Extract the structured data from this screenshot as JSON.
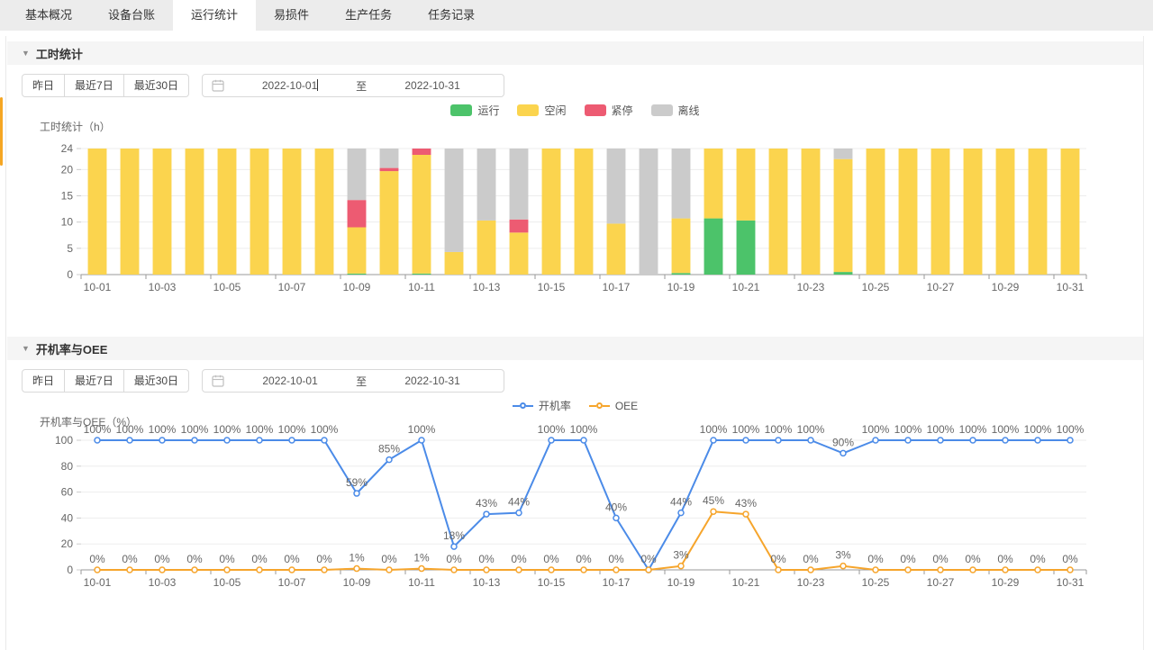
{
  "tabs": [
    {
      "label": "基本概况",
      "active": false
    },
    {
      "label": "设备台账",
      "active": false
    },
    {
      "label": "运行统计",
      "active": true
    },
    {
      "label": "易损件",
      "active": false
    },
    {
      "label": "生产任务",
      "active": false
    },
    {
      "label": "任务记录",
      "active": false
    }
  ],
  "sections": [
    {
      "title": "工时统计",
      "filters": {
        "yesterday": "昨日",
        "last7": "最近7日",
        "last30": "最近30日",
        "start": "2022-10-01",
        "to": "至",
        "end": "2022-10-31"
      },
      "legend": [
        {
          "label": "运行",
          "color": "#4cc36a"
        },
        {
          "label": "空闲",
          "color": "#fbd44e"
        },
        {
          "label": "紧停",
          "color": "#ed5b72"
        },
        {
          "label": "离线",
          "color": "#cbcbcb"
        }
      ]
    },
    {
      "title": "开机率与OEE",
      "filters": {
        "yesterday": "昨日",
        "last7": "最近7日",
        "last30": "最近30日",
        "start": "2022-10-01",
        "to": "至",
        "end": "2022-10-31"
      },
      "legend": [
        {
          "label": "开机率",
          "color": "#4b8be8"
        },
        {
          "label": "OEE",
          "color": "#f6a52c"
        }
      ]
    }
  ],
  "chart_data": [
    {
      "type": "bar",
      "stacked": true,
      "title": "工时统计（h）",
      "categories": [
        "10-01",
        "10-02",
        "10-03",
        "10-04",
        "10-05",
        "10-06",
        "10-07",
        "10-08",
        "10-09",
        "10-10",
        "10-11",
        "10-12",
        "10-13",
        "10-14",
        "10-15",
        "10-16",
        "10-17",
        "10-18",
        "10-19",
        "10-20",
        "10-21",
        "10-22",
        "10-23",
        "10-24",
        "10-25",
        "10-26",
        "10-27",
        "10-28",
        "10-29",
        "10-30",
        "10-31"
      ],
      "x_label_every": 2,
      "ylim": [
        0,
        24
      ],
      "yticks": [
        0,
        5,
        10,
        15,
        20,
        24
      ],
      "legend_position": "top-center",
      "grid": true,
      "series": [
        {
          "name": "运行",
          "color": "#4cc36a",
          "values": [
            0,
            0,
            0,
            0,
            0,
            0,
            0,
            0,
            0.2,
            0,
            0.2,
            0,
            0,
            0,
            0,
            0,
            0,
            0,
            0.3,
            10.7,
            10.3,
            0,
            0,
            0.5,
            0,
            0,
            0,
            0,
            0,
            0,
            0
          ]
        },
        {
          "name": "空闲",
          "color": "#fbd44e",
          "values": [
            24,
            24,
            24,
            24,
            24,
            24,
            24,
            24,
            8.8,
            19.7,
            22.6,
            4.3,
            10.3,
            8,
            24,
            24,
            9.7,
            0,
            10.4,
            13.3,
            13.7,
            24,
            24,
            21.5,
            24,
            24,
            24,
            24,
            24,
            24,
            24
          ]
        },
        {
          "name": "紧停",
          "color": "#ed5b72",
          "values": [
            0,
            0,
            0,
            0,
            0,
            0,
            0,
            0,
            5.2,
            0.6,
            1.2,
            0,
            0,
            2.5,
            0,
            0,
            0,
            0,
            0,
            0,
            0,
            0,
            0,
            0,
            0,
            0,
            0,
            0,
            0,
            0,
            0
          ]
        },
        {
          "name": "离线",
          "color": "#cbcbcb",
          "values": [
            0,
            0,
            0,
            0,
            0,
            0,
            0,
            0,
            9.8,
            3.7,
            0,
            19.7,
            13.7,
            13.5,
            0,
            0,
            14.3,
            24,
            13.3,
            0,
            0,
            0,
            0,
            2,
            0,
            0,
            0,
            0,
            0,
            0,
            0
          ]
        }
      ]
    },
    {
      "type": "line",
      "title": "开机率与OEE（%）",
      "categories": [
        "10-01",
        "10-02",
        "10-03",
        "10-04",
        "10-05",
        "10-06",
        "10-07",
        "10-08",
        "10-09",
        "10-10",
        "10-11",
        "10-12",
        "10-13",
        "10-14",
        "10-15",
        "10-16",
        "10-17",
        "10-18",
        "10-19",
        "10-20",
        "10-21",
        "10-22",
        "10-23",
        "10-24",
        "10-25",
        "10-26",
        "10-27",
        "10-28",
        "10-29",
        "10-30",
        "10-31"
      ],
      "x_label_every": 2,
      "ylim": [
        0,
        100
      ],
      "yticks": [
        0,
        20,
        40,
        60,
        80,
        100
      ],
      "unit": "%",
      "legend_position": "top-center",
      "grid": true,
      "series": [
        {
          "name": "开机率",
          "color": "#4b8be8",
          "skip_zero_label": true,
          "values": [
            100,
            100,
            100,
            100,
            100,
            100,
            100,
            100,
            59,
            85,
            100,
            18,
            43,
            44,
            100,
            100,
            40,
            0,
            44,
            100,
            100,
            100,
            100,
            90,
            100,
            100,
            100,
            100,
            100,
            100,
            100
          ]
        },
        {
          "name": "OEE",
          "color": "#f6a52c",
          "skip_zero_label": false,
          "values": [
            0,
            0,
            0,
            0,
            0,
            0,
            0,
            0,
            1,
            0,
            1,
            0,
            0,
            0,
            0,
            0,
            0,
            0,
            3,
            45,
            43,
            0,
            0,
            3,
            0,
            0,
            0,
            0,
            0,
            0,
            0
          ]
        }
      ]
    }
  ]
}
